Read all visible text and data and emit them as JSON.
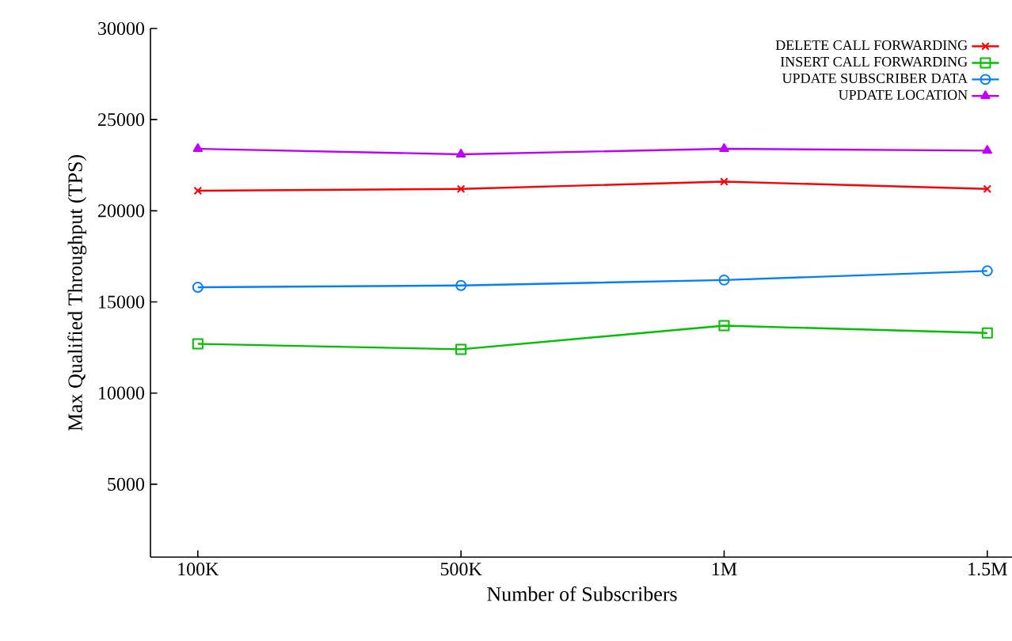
{
  "chart_data": {
    "type": "line",
    "xlabel": "Number of Subscribers",
    "ylabel": "Max Qualified Throughput (TPS)",
    "categories": [
      "100K",
      "500K",
      "1M",
      "1.5M"
    ],
    "series": [
      {
        "name": "DELETE CALL FORWARDING",
        "color": "#ff0000",
        "marker": "cross",
        "values": [
          21100,
          21200,
          21600,
          21200
        ]
      },
      {
        "name": "INSERT CALL FORWARDING",
        "color": "#00c000",
        "marker": "square",
        "values": [
          12700,
          12400,
          13700,
          13300
        ]
      },
      {
        "name": "UPDATE SUBSCRIBER DATA",
        "color": "#0080ff",
        "marker": "circle",
        "values": [
          15800,
          15900,
          16200,
          16700
        ]
      },
      {
        "name": "UPDATE LOCATION",
        "color": "#c000ff",
        "marker": "triangle",
        "values": [
          23400,
          23100,
          23400,
          23300
        ]
      }
    ],
    "ylim": [
      1000,
      30000
    ],
    "yticks": [
      5000,
      10000,
      15000,
      20000,
      25000,
      30000
    ],
    "grid": false,
    "legend": "top right",
    "line_style": "solid"
  }
}
